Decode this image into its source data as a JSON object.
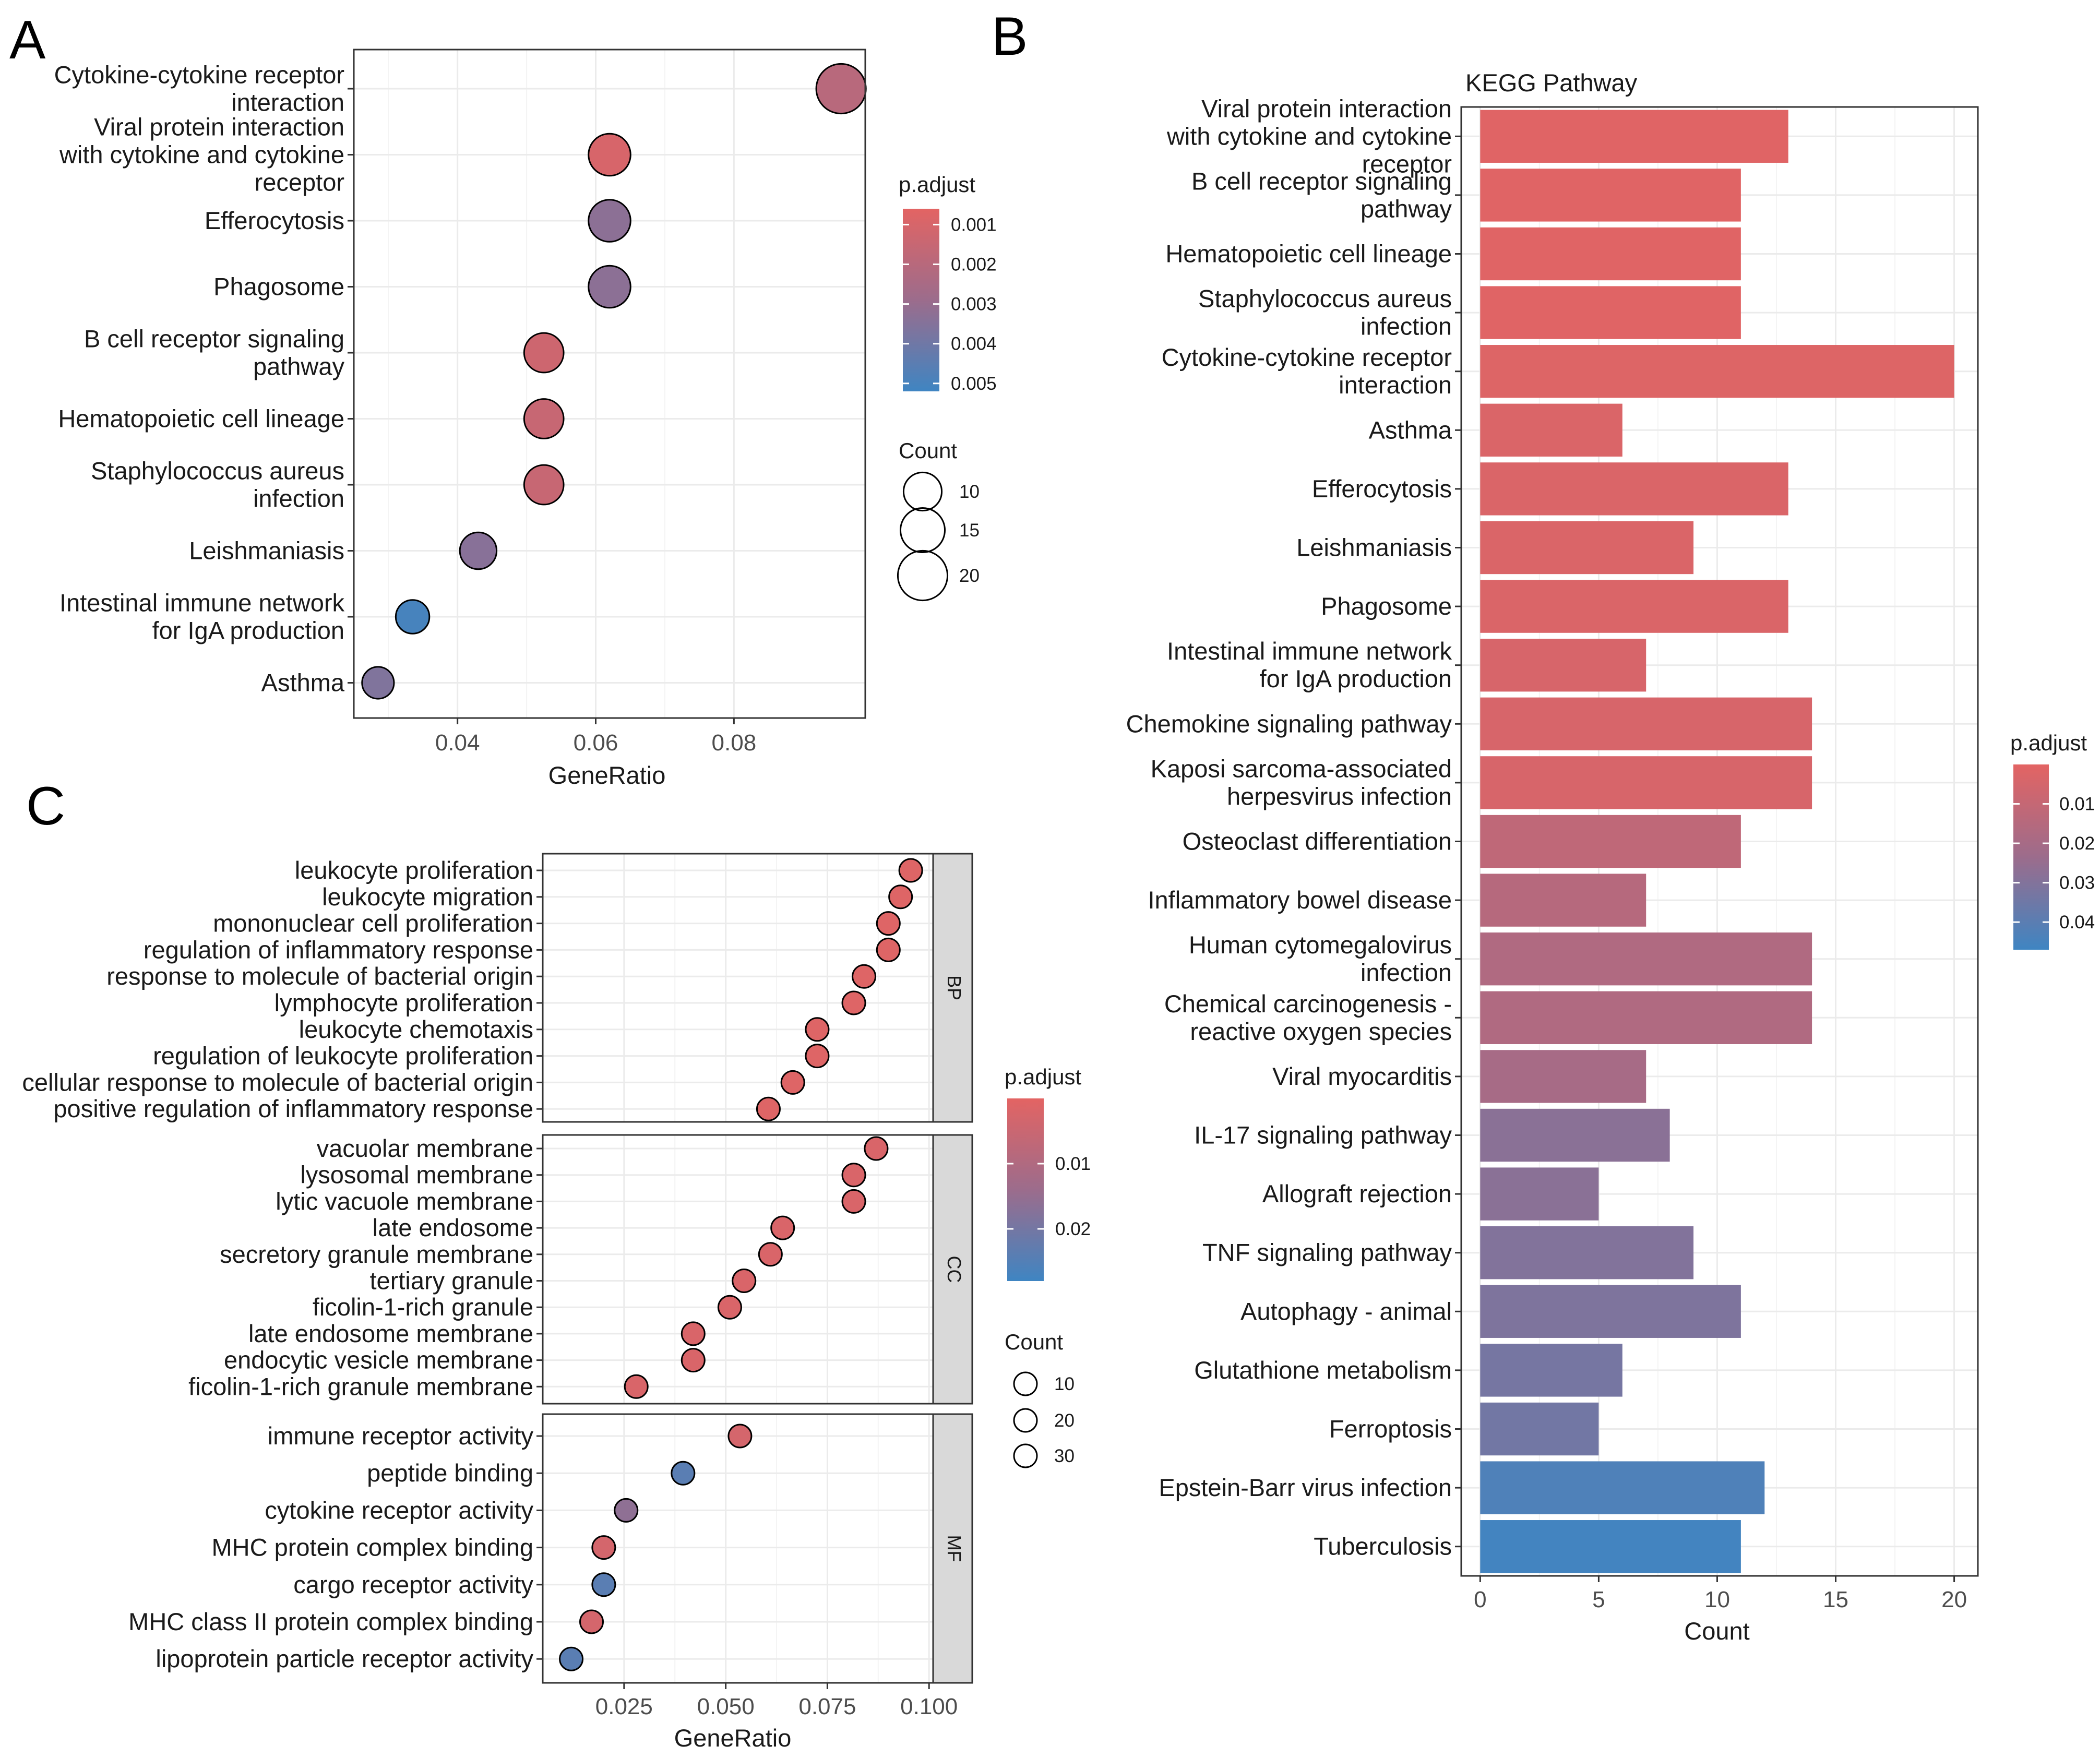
{
  "colors": {
    "low_padj": "#E36463",
    "mid_padj": "#9C6C8C",
    "high_padj": "#3F85C2",
    "grid": "#EBEBEB",
    "strip_fill": "#D9D9D9",
    "point_stroke": "#000000"
  },
  "chart_data": [
    {
      "panel": "A",
      "type": "scatter",
      "title": "",
      "xlabel": "GeneRatio",
      "ylabel": "",
      "xlim": [
        0.025,
        0.099
      ],
      "xticks": [
        0.04,
        0.06,
        0.08
      ],
      "xtick_labels": [
        "0.04",
        "0.06",
        "0.08"
      ],
      "categories": [
        "Cytokine-cytokine receptor\ninteraction",
        "Viral protein interaction\nwith cytokine and cytokine\nreceptor",
        "Efferocytosis",
        "Phagosome",
        "B cell receptor signaling\npathway",
        "Hematopoietic cell lineage",
        "Staphylococcus aureus\ninfection",
        "Leishmaniasis",
        "Intestinal immune network\nfor IgA production",
        "Asthma"
      ],
      "points": [
        {
          "term": "Cytokine-cytokine receptor interaction",
          "x": 0.0955,
          "count": 20,
          "padj": 0.002
        },
        {
          "term": "Viral protein interaction with cytokine and cytokine receptor",
          "x": 0.062,
          "count": 13,
          "padj": 0.001
        },
        {
          "term": "Efferocytosis",
          "x": 0.062,
          "count": 13,
          "padj": 0.0033
        },
        {
          "term": "Phagosome",
          "x": 0.062,
          "count": 13,
          "padj": 0.0033
        },
        {
          "term": "B cell receptor signaling pathway",
          "x": 0.0525,
          "count": 11,
          "padj": 0.0013
        },
        {
          "term": "Hematopoietic cell lineage",
          "x": 0.0525,
          "count": 11,
          "padj": 0.0015
        },
        {
          "term": "Staphylococcus aureus infection",
          "x": 0.0525,
          "count": 11,
          "padj": 0.0015
        },
        {
          "term": "Leishmaniasis",
          "x": 0.043,
          "count": 9,
          "padj": 0.0034
        },
        {
          "term": "Intestinal immune network for IgA production",
          "x": 0.0335,
          "count": 7,
          "padj": 0.005
        },
        {
          "term": "Asthma",
          "x": 0.0285,
          "count": 6,
          "padj": 0.0036
        }
      ],
      "color_legend": {
        "title": "p.adjust",
        "min": 0.0006,
        "max": 0.0052,
        "ticks": [
          0.001,
          0.002,
          0.003,
          0.004,
          0.005
        ],
        "tick_labels": [
          "0.001",
          "0.002",
          "0.003",
          "0.004",
          "0.005"
        ]
      },
      "size_legend": {
        "title": "Count",
        "values": [
          10,
          15,
          20
        ],
        "labels": [
          "10",
          "15",
          "20"
        ]
      }
    },
    {
      "panel": "B",
      "type": "bar",
      "orientation": "horizontal",
      "title": "KEGG Pathway",
      "xlabel": "Count",
      "ylabel": "",
      "xlim": [
        -0.8,
        21
      ],
      "xticks": [
        0,
        5,
        10,
        15,
        20
      ],
      "xtick_labels": [
        "0",
        "5",
        "10",
        "15",
        "20"
      ],
      "categories": [
        "Viral protein interaction\nwith cytokine and cytokine\nreceptor",
        "B cell receptor signaling\npathway",
        "Hematopoietic cell lineage",
        "Staphylococcus aureus\ninfection",
        "Cytokine-cytokine receptor\ninteraction",
        "Asthma",
        "Efferocytosis",
        "Leishmaniasis",
        "Phagosome",
        "Intestinal immune network\nfor IgA production",
        "Chemokine signaling pathway",
        "Kaposi sarcoma-associated\nherpesvirus infection",
        "Osteoclast differentiation",
        "Inflammatory bowel disease",
        "Human cytomegalovirus\ninfection",
        "Chemical carcinogenesis -\nreactive oxygen species",
        "Viral myocarditis",
        "IL-17 signaling pathway",
        "Allograft rejection",
        "TNF signaling pathway",
        "Autophagy - animal",
        "Glutathione metabolism",
        "Ferroptosis",
        "Epstein-Barr virus infection",
        "Tuberculosis"
      ],
      "values": [
        13,
        11,
        11,
        11,
        20,
        6,
        13,
        9,
        13,
        7,
        14,
        14,
        11,
        7,
        14,
        14,
        7,
        8,
        5,
        9,
        11,
        6,
        5,
        12,
        11
      ],
      "padj": [
        0.001,
        0.001,
        0.001,
        0.001,
        0.002,
        0.003,
        0.003,
        0.003,
        0.003,
        0.004,
        0.004,
        0.004,
        0.012,
        0.015,
        0.017,
        0.017,
        0.02,
        0.028,
        0.028,
        0.03,
        0.031,
        0.033,
        0.034,
        0.043,
        0.046
      ],
      "color_legend": {
        "title": "p.adjust",
        "min": 0.0,
        "max": 0.047,
        "ticks": [
          0.01,
          0.02,
          0.03,
          0.04
        ],
        "tick_labels": [
          "0.01",
          "0.02",
          "0.03",
          "0.04"
        ]
      }
    },
    {
      "panel": "C",
      "type": "scatter",
      "title": "",
      "xlabel": "GeneRatio",
      "ylabel": "",
      "xlim": [
        0.005,
        0.101
      ],
      "xticks": [
        0.025,
        0.05,
        0.075,
        0.1
      ],
      "xtick_labels": [
        "0.025",
        "0.050",
        "0.075",
        "0.100"
      ],
      "facets": [
        {
          "strip": "BP",
          "terms": [
            "leukocyte proliferation",
            "leukocyte migration",
            "mononuclear cell proliferation",
            "regulation of inflammatory response",
            "response to molecule of bacterial origin",
            "lymphocyte proliferation",
            "leukocyte chemotaxis",
            "regulation of leukocyte proliferation",
            "cellular response to molecule of bacterial origin",
            "positive regulation of inflammatory response"
          ],
          "x": [
            0.0955,
            0.093,
            0.09,
            0.09,
            0.084,
            0.0815,
            0.0725,
            0.0725,
            0.0665,
            0.0605
          ],
          "padj": [
            0.001,
            0.001,
            0.001,
            0.001,
            0.001,
            0.001,
            0.001,
            0.001,
            0.001,
            0.001
          ],
          "count": [
            10,
            10,
            10,
            10,
            10,
            10,
            10,
            10,
            10,
            10
          ]
        },
        {
          "strip": "CC",
          "terms": [
            "vacuolar membrane",
            "lysosomal membrane",
            "lytic vacuole membrane",
            "late endosome",
            "secretory granule membrane",
            "tertiary granule",
            "ficolin-1-rich granule",
            "late endosome membrane",
            "endocytic vesicle membrane",
            "ficolin-1-rich granule membrane"
          ],
          "x": [
            0.087,
            0.0815,
            0.0815,
            0.064,
            0.061,
            0.0545,
            0.051,
            0.042,
            0.042,
            0.028
          ],
          "padj": [
            0.002,
            0.002,
            0.002,
            0.002,
            0.002,
            0.002,
            0.002,
            0.002,
            0.002,
            0.002
          ],
          "count": [
            10,
            10,
            10,
            10,
            10,
            10,
            10,
            10,
            10,
            10
          ]
        },
        {
          "strip": "MF",
          "terms": [
            "immune receptor activity",
            "peptide binding",
            "cytokine receptor activity",
            "MHC protein complex binding",
            "cargo receptor activity",
            "MHC class II protein complex binding",
            "lipoprotein particle receptor activity"
          ],
          "x": [
            0.0535,
            0.0395,
            0.0255,
            0.02,
            0.02,
            0.017,
            0.012
          ],
          "padj": [
            0.003,
            0.024,
            0.016,
            0.003,
            0.024,
            0.003,
            0.024
          ],
          "count": [
            10,
            10,
            10,
            10,
            10,
            10,
            10
          ]
        }
      ],
      "color_legend": {
        "title": "p.adjust",
        "min": 0.0,
        "max": 0.028,
        "ticks": [
          0.01,
          0.02
        ],
        "tick_labels": [
          "0.01",
          "0.02"
        ]
      },
      "size_legend": {
        "title": "Count",
        "values": [
          10,
          20,
          30
        ],
        "labels": [
          "10",
          "20",
          "30"
        ]
      }
    }
  ]
}
